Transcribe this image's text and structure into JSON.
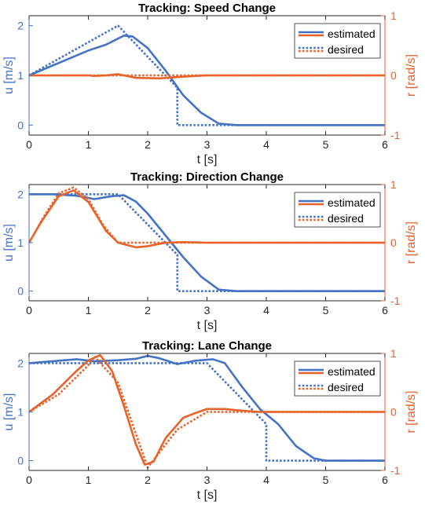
{
  "colors": {
    "blue": "#4472C4",
    "orange": "#E8622A",
    "axis": "#262626"
  },
  "chart_data": [
    {
      "type": "line",
      "title": "Tracking: Speed Change",
      "xlabel": "t [s]",
      "ylabel_left": "u [m/s]",
      "ylabel_right": "r [rad/s]",
      "xlim": [
        0,
        6
      ],
      "ylim_left": [
        -0.2,
        2.2
      ],
      "ylim_right": [
        -1,
        1
      ],
      "xticks": [
        "0",
        "1",
        "2",
        "3",
        "4",
        "5",
        "6"
      ],
      "yticks_left": [
        "0",
        "1",
        "2"
      ],
      "yticks_right": [
        "-1",
        "0",
        "1"
      ],
      "legend": {
        "position": "top-right",
        "entries": [
          "estimated",
          "desired"
        ]
      },
      "series": [
        {
          "name": "estimated",
          "axis": "left",
          "color": "blue",
          "style": "solid",
          "x": [
            0,
            0.5,
            1.0,
            1.3,
            1.6,
            1.75,
            2.0,
            2.3,
            2.6,
            2.9,
            3.2,
            3.5,
            4,
            5,
            6
          ],
          "y": [
            1.0,
            1.25,
            1.5,
            1.62,
            1.8,
            1.78,
            1.55,
            1.1,
            0.6,
            0.25,
            0.03,
            0.0,
            0.0,
            0.0,
            0.0
          ]
        },
        {
          "name": "desired",
          "axis": "left",
          "color": "blue",
          "style": "dotted",
          "x": [
            0,
            1.5,
            2.5,
            2.5,
            6
          ],
          "y": [
            1.0,
            2.0,
            0.75,
            0.0,
            0.0
          ]
        },
        {
          "name": "estimated",
          "axis": "right",
          "color": "orange",
          "style": "solid",
          "x": [
            0,
            1.0,
            1.1,
            1.3,
            1.5,
            1.8,
            2.2,
            2.6,
            3.0,
            3.5,
            6
          ],
          "y": [
            0.0,
            0.0,
            -0.01,
            0.0,
            0.02,
            -0.04,
            -0.05,
            -0.02,
            0.0,
            0.0,
            0.0
          ]
        },
        {
          "name": "desired",
          "axis": "right",
          "color": "orange",
          "style": "dotted",
          "x": [
            0,
            6
          ],
          "y": [
            0.0,
            0.0
          ]
        }
      ]
    },
    {
      "type": "line",
      "title": "Tracking: Direction Change",
      "xlabel": "t [s]",
      "ylabel_left": "u [m/s]",
      "ylabel_right": "r [rad/s]",
      "xlim": [
        0,
        6
      ],
      "ylim_left": [
        -0.2,
        2.2
      ],
      "ylim_right": [
        -1,
        1
      ],
      "xticks": [
        "0",
        "1",
        "2",
        "3",
        "4",
        "5",
        "6"
      ],
      "yticks_left": [
        "0",
        "1",
        "2"
      ],
      "yticks_right": [
        "-1",
        "0",
        "1"
      ],
      "legend": {
        "position": "top-right",
        "entries": [
          "estimated",
          "desired"
        ]
      },
      "series": [
        {
          "name": "estimated",
          "axis": "left",
          "color": "blue",
          "style": "solid",
          "x": [
            0,
            0.4,
            0.8,
            1.1,
            1.4,
            1.6,
            1.8,
            2.0,
            2.3,
            2.6,
            2.9,
            3.2,
            3.5,
            6
          ],
          "y": [
            2.0,
            2.0,
            1.97,
            1.9,
            1.96,
            1.98,
            1.85,
            1.6,
            1.15,
            0.7,
            0.3,
            0.03,
            0.0,
            0.0
          ]
        },
        {
          "name": "desired",
          "axis": "left",
          "color": "blue",
          "style": "dotted",
          "x": [
            0,
            1.5,
            2.5,
            2.5,
            6
          ],
          "y": [
            2.0,
            2.0,
            0.75,
            0.0,
            0.0
          ]
        },
        {
          "name": "estimated",
          "axis": "right",
          "color": "orange",
          "style": "solid",
          "x": [
            0,
            0.2,
            0.5,
            0.75,
            1.0,
            1.3,
            1.5,
            1.8,
            2.0,
            2.3,
            2.6,
            3.0,
            6
          ],
          "y": [
            0.0,
            0.35,
            0.8,
            0.9,
            0.7,
            0.2,
            0.0,
            -0.08,
            -0.06,
            0.0,
            0.01,
            0.0,
            0.0
          ]
        },
        {
          "name": "desired",
          "axis": "right",
          "color": "orange",
          "style": "dotted",
          "x": [
            0,
            0.25,
            0.5,
            0.75,
            1.0,
            1.25,
            1.5,
            6
          ],
          "y": [
            0.0,
            0.45,
            0.85,
            0.95,
            0.75,
            0.3,
            0.0,
            0.0
          ]
        }
      ]
    },
    {
      "type": "line",
      "title": "Tracking: Lane Change",
      "xlabel": "t [s]",
      "ylabel_left": "u [m/s]",
      "ylabel_right": "r [rad/s]",
      "xlim": [
        0,
        6
      ],
      "ylim_left": [
        -0.2,
        2.2
      ],
      "ylim_right": [
        -1,
        1
      ],
      "xticks": [
        "0",
        "1",
        "2",
        "3",
        "4",
        "5",
        "6"
      ],
      "yticks_left": [
        "0",
        "1",
        "2"
      ],
      "yticks_right": [
        "-1",
        "0",
        "1"
      ],
      "legend": {
        "position": "top-right",
        "entries": [
          "estimated",
          "desired"
        ]
      },
      "series": [
        {
          "name": "estimated",
          "axis": "left",
          "color": "blue",
          "style": "solid",
          "x": [
            0,
            0.5,
            0.8,
            1.1,
            1.5,
            1.8,
            2.0,
            2.2,
            2.5,
            2.8,
            3.1,
            3.3,
            3.6,
            3.9,
            4.2,
            4.5,
            4.8,
            5.0,
            6
          ],
          "y": [
            2.0,
            2.05,
            2.08,
            2.04,
            2.06,
            2.09,
            2.15,
            2.1,
            1.98,
            2.05,
            2.08,
            2.0,
            1.5,
            1.05,
            0.75,
            0.3,
            0.05,
            0.0,
            0.0
          ]
        },
        {
          "name": "desired",
          "axis": "left",
          "color": "blue",
          "style": "dotted",
          "x": [
            0,
            3.0,
            4.0,
            4.0,
            6
          ],
          "y": [
            2.0,
            2.0,
            0.75,
            0.0,
            0.0
          ]
        },
        {
          "name": "estimated",
          "axis": "right",
          "color": "orange",
          "style": "solid",
          "x": [
            0,
            0.4,
            0.8,
            1.0,
            1.2,
            1.4,
            1.6,
            1.8,
            1.95,
            2.1,
            2.3,
            2.6,
            2.8,
            3.0,
            3.3,
            3.6,
            3.9,
            4.2,
            6
          ],
          "y": [
            0.0,
            0.3,
            0.7,
            0.88,
            0.97,
            0.7,
            0.1,
            -0.55,
            -0.9,
            -0.85,
            -0.45,
            -0.1,
            -0.02,
            0.05,
            0.05,
            0.02,
            0.0,
            0.0,
            0.0
          ]
        },
        {
          "name": "desired",
          "axis": "right",
          "color": "orange",
          "style": "dotted",
          "x": [
            0,
            0.5,
            1.0,
            1.1,
            1.5,
            2.0,
            2.5,
            3.0,
            6
          ],
          "y": [
            0.0,
            0.3,
            0.8,
            0.95,
            0.5,
            -0.95,
            -0.3,
            0.0,
            0.0
          ]
        }
      ]
    }
  ]
}
